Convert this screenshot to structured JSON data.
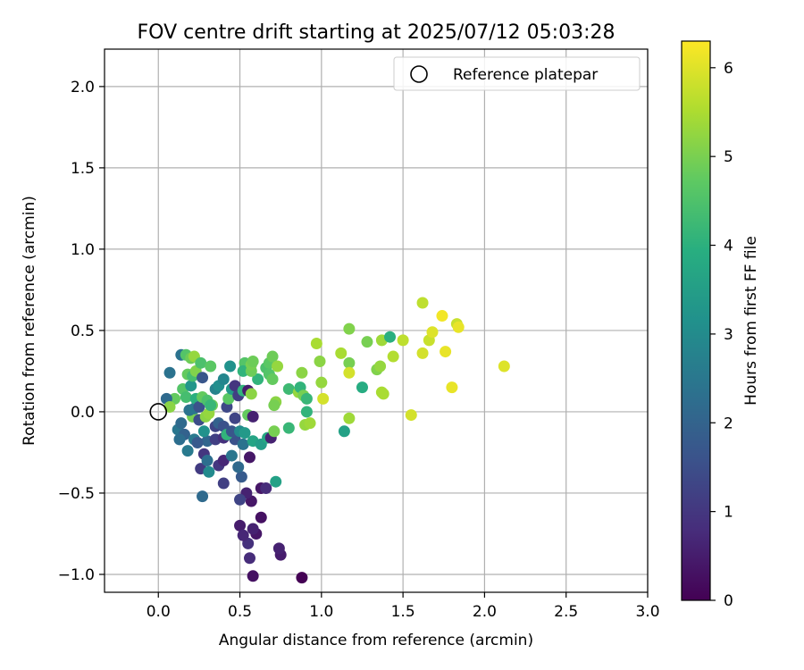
{
  "chart_data": {
    "type": "scatter",
    "title": "FOV centre drift starting at 2025/07/12 05:03:28",
    "xlabel": "Angular distance from reference (arcmin)",
    "ylabel": "Rotation from reference (arcmin)",
    "xlim": [
      -0.33,
      3.0
    ],
    "ylim": [
      -1.11,
      2.23
    ],
    "xticks": [
      "0.0",
      "0.5",
      "1.0",
      "1.5",
      "2.0",
      "2.5",
      "3.0"
    ],
    "yticks": [
      "−1.0",
      "−0.5",
      "0.0",
      "0.5",
      "1.0",
      "1.5",
      "2.0"
    ],
    "grid": true,
    "legend": {
      "label": "Reference platepar",
      "marker": "hollow-circle",
      "location": "top-right"
    },
    "reference_point": {
      "x": 0.0,
      "y": 0.0
    },
    "colorbar": {
      "label": "Hours from first FF file",
      "colormap": "viridis",
      "min": 0,
      "max": 6.3,
      "ticks": [
        "0",
        "1",
        "2",
        "3",
        "4",
        "5",
        "6"
      ]
    },
    "points": [
      {
        "x": 0.88,
        "y": -1.02,
        "c": 0.0
      },
      {
        "x": 0.58,
        "y": -1.01,
        "c": 0.3
      },
      {
        "x": 0.75,
        "y": -0.88,
        "c": 0.5
      },
      {
        "x": 0.74,
        "y": -0.84,
        "c": 0.6
      },
      {
        "x": 0.56,
        "y": -0.9,
        "c": 0.8
      },
      {
        "x": 0.55,
        "y": -0.81,
        "c": 0.9
      },
      {
        "x": 0.6,
        "y": -0.75,
        "c": 0.4
      },
      {
        "x": 0.58,
        "y": -0.72,
        "c": 0.6
      },
      {
        "x": 0.5,
        "y": -0.7,
        "c": 0.5
      },
      {
        "x": 0.52,
        "y": -0.76,
        "c": 0.7
      },
      {
        "x": 0.63,
        "y": -0.65,
        "c": 0.3
      },
      {
        "x": 0.57,
        "y": -0.55,
        "c": 0.4
      },
      {
        "x": 0.54,
        "y": -0.5,
        "c": 0.6
      },
      {
        "x": 0.63,
        "y": -0.47,
        "c": 0.4
      },
      {
        "x": 0.66,
        "y": -0.47,
        "c": 0.8
      },
      {
        "x": 0.5,
        "y": -0.54,
        "c": 1.3
      },
      {
        "x": 0.4,
        "y": -0.44,
        "c": 1.2
      },
      {
        "x": 0.27,
        "y": -0.52,
        "c": 2.2
      },
      {
        "x": 0.26,
        "y": -0.35,
        "c": 1.1
      },
      {
        "x": 0.37,
        "y": -0.33,
        "c": 1.0
      },
      {
        "x": 0.4,
        "y": -0.3,
        "c": 0.7
      },
      {
        "x": 0.31,
        "y": -0.37,
        "c": 3.0
      },
      {
        "x": 0.51,
        "y": -0.4,
        "c": 1.8
      },
      {
        "x": 0.49,
        "y": -0.34,
        "c": 2.2
      },
      {
        "x": 0.56,
        "y": -0.28,
        "c": 0.4
      },
      {
        "x": 0.45,
        "y": -0.27,
        "c": 2.5
      },
      {
        "x": 0.28,
        "y": -0.26,
        "c": 1.0
      },
      {
        "x": 0.3,
        "y": -0.3,
        "c": 2.3
      },
      {
        "x": 0.18,
        "y": -0.24,
        "c": 2.6
      },
      {
        "x": 0.3,
        "y": -0.18,
        "c": 2.1
      },
      {
        "x": 0.35,
        "y": -0.17,
        "c": 1.2
      },
      {
        "x": 0.4,
        "y": -0.16,
        "c": 0.9
      },
      {
        "x": 0.47,
        "y": -0.17,
        "c": 1.6
      },
      {
        "x": 0.52,
        "y": -0.2,
        "c": 2.4
      },
      {
        "x": 0.58,
        "y": -0.18,
        "c": 3.7
      },
      {
        "x": 0.63,
        "y": -0.2,
        "c": 3.5
      },
      {
        "x": 0.67,
        "y": -0.16,
        "c": 3.8
      },
      {
        "x": 0.69,
        "y": -0.16,
        "c": 0.6
      },
      {
        "x": 0.72,
        "y": -0.43,
        "c": 3.6
      },
      {
        "x": 0.71,
        "y": -0.12,
        "c": 5.0
      },
      {
        "x": 0.8,
        "y": -0.1,
        "c": 4.2
      },
      {
        "x": 0.9,
        "y": -0.08,
        "c": 5.3
      },
      {
        "x": 0.93,
        "y": -0.07,
        "c": 5.4
      },
      {
        "x": 1.14,
        "y": -0.12,
        "c": 3.6
      },
      {
        "x": 1.17,
        "y": -0.04,
        "c": 5.4
      },
      {
        "x": 0.12,
        "y": -0.11,
        "c": 2.5
      },
      {
        "x": 0.14,
        "y": -0.07,
        "c": 2.2
      },
      {
        "x": 0.16,
        "y": -0.14,
        "c": 2.0
      },
      {
        "x": 0.13,
        "y": -0.17,
        "c": 2.3
      },
      {
        "x": 0.22,
        "y": -0.17,
        "c": 2.6
      },
      {
        "x": 0.24,
        "y": -0.19,
        "c": 1.8
      },
      {
        "x": 0.21,
        "y": -0.03,
        "c": 5.0
      },
      {
        "x": 0.19,
        "y": 0.01,
        "c": 2.4
      },
      {
        "x": 0.22,
        "y": 0.02,
        "c": 2.5
      },
      {
        "x": 0.25,
        "y": -0.05,
        "c": 1.5
      },
      {
        "x": 0.28,
        "y": -0.12,
        "c": 3.2
      },
      {
        "x": 0.29,
        "y": -0.03,
        "c": 5.2
      },
      {
        "x": 0.31,
        "y": -0.01,
        "c": 5.3
      },
      {
        "x": 0.33,
        "y": 0.04,
        "c": 4.9
      },
      {
        "x": 0.35,
        "y": -0.09,
        "c": 1.3
      },
      {
        "x": 0.37,
        "y": -0.07,
        "c": 2.0
      },
      {
        "x": 0.4,
        "y": -0.09,
        "c": 1.6
      },
      {
        "x": 0.42,
        "y": -0.14,
        "c": 4.1
      },
      {
        "x": 0.45,
        "y": -0.12,
        "c": 1.7
      },
      {
        "x": 0.47,
        "y": -0.04,
        "c": 1.3
      },
      {
        "x": 0.5,
        "y": -0.12,
        "c": 3.0
      },
      {
        "x": 0.53,
        "y": -0.13,
        "c": 3.4
      },
      {
        "x": 0.55,
        "y": -0.02,
        "c": 4.8
      },
      {
        "x": 0.58,
        "y": -0.03,
        "c": 0.6
      },
      {
        "x": 0.1,
        "y": 0.08,
        "c": 4.8
      },
      {
        "x": 0.05,
        "y": 0.08,
        "c": 2.2
      },
      {
        "x": 0.07,
        "y": 0.03,
        "c": 5.2
      },
      {
        "x": 0.15,
        "y": 0.14,
        "c": 4.6
      },
      {
        "x": 0.17,
        "y": 0.09,
        "c": 4.4
      },
      {
        "x": 0.2,
        "y": 0.16,
        "c": 3.3
      },
      {
        "x": 0.23,
        "y": 0.08,
        "c": 4.0
      },
      {
        "x": 0.25,
        "y": 0.03,
        "c": 1.6
      },
      {
        "x": 0.27,
        "y": 0.09,
        "c": 4.8
      },
      {
        "x": 0.3,
        "y": 0.07,
        "c": 4.5
      },
      {
        "x": 0.32,
        "y": 0.04,
        "c": 4.2
      },
      {
        "x": 0.35,
        "y": 0.14,
        "c": 2.8
      },
      {
        "x": 0.37,
        "y": 0.16,
        "c": 3.1
      },
      {
        "x": 0.4,
        "y": 0.2,
        "c": 2.9
      },
      {
        "x": 0.42,
        "y": 0.03,
        "c": 1.4
      },
      {
        "x": 0.43,
        "y": 0.08,
        "c": 4.7
      },
      {
        "x": 0.45,
        "y": 0.14,
        "c": 3.4
      },
      {
        "x": 0.47,
        "y": 0.16,
        "c": 1.0
      },
      {
        "x": 0.49,
        "y": 0.1,
        "c": 1.2
      },
      {
        "x": 0.52,
        "y": 0.13,
        "c": 4.1
      },
      {
        "x": 0.55,
        "y": 0.13,
        "c": 0.5
      },
      {
        "x": 0.57,
        "y": 0.11,
        "c": 5.2
      },
      {
        "x": 0.61,
        "y": 0.2,
        "c": 4.1
      },
      {
        "x": 0.14,
        "y": 0.35,
        "c": 2.4
      },
      {
        "x": 0.17,
        "y": 0.35,
        "c": 4.6
      },
      {
        "x": 0.2,
        "y": 0.33,
        "c": 4.9
      },
      {
        "x": 0.22,
        "y": 0.34,
        "c": 5.3
      },
      {
        "x": 0.18,
        "y": 0.23,
        "c": 4.8
      },
      {
        "x": 0.21,
        "y": 0.22,
        "c": 4.4
      },
      {
        "x": 0.23,
        "y": 0.25,
        "c": 5.1
      },
      {
        "x": 0.27,
        "y": 0.21,
        "c": 1.7
      },
      {
        "x": 0.26,
        "y": 0.3,
        "c": 4.5
      },
      {
        "x": 0.32,
        "y": 0.28,
        "c": 4.7
      },
      {
        "x": 0.07,
        "y": 0.24,
        "c": 2.4
      },
      {
        "x": 0.44,
        "y": 0.28,
        "c": 3.2
      },
      {
        "x": 0.53,
        "y": 0.3,
        "c": 4.6
      },
      {
        "x": 0.52,
        "y": 0.25,
        "c": 4.1
      },
      {
        "x": 0.57,
        "y": 0.25,
        "c": 4.9
      },
      {
        "x": 0.57,
        "y": 0.29,
        "c": 5.0
      },
      {
        "x": 0.58,
        "y": 0.31,
        "c": 4.9
      },
      {
        "x": 0.66,
        "y": 0.27,
        "c": 4.5
      },
      {
        "x": 0.68,
        "y": 0.3,
        "c": 4.7
      },
      {
        "x": 0.7,
        "y": 0.34,
        "c": 4.9
      },
      {
        "x": 0.68,
        "y": 0.23,
        "c": 4.6
      },
      {
        "x": 0.7,
        "y": 0.2,
        "c": 4.8
      },
      {
        "x": 0.73,
        "y": 0.28,
        "c": 5.3
      },
      {
        "x": 0.72,
        "y": 0.06,
        "c": 5.2
      },
      {
        "x": 0.71,
        "y": 0.04,
        "c": 5.0
      },
      {
        "x": 0.8,
        "y": 0.14,
        "c": 4.3
      },
      {
        "x": 0.86,
        "y": 0.12,
        "c": 5.3
      },
      {
        "x": 0.87,
        "y": 0.15,
        "c": 4.1
      },
      {
        "x": 0.88,
        "y": 0.24,
        "c": 5.2
      },
      {
        "x": 0.89,
        "y": 0.1,
        "c": 5.0
      },
      {
        "x": 0.91,
        "y": 0.08,
        "c": 4.2
      },
      {
        "x": 0.91,
        "y": 0.0,
        "c": 4.1
      },
      {
        "x": 0.97,
        "y": 0.42,
        "c": 5.5
      },
      {
        "x": 0.99,
        "y": 0.31,
        "c": 5.2
      },
      {
        "x": 1.0,
        "y": 0.18,
        "c": 5.3
      },
      {
        "x": 1.01,
        "y": 0.08,
        "c": 5.9
      },
      {
        "x": 1.12,
        "y": 0.36,
        "c": 5.5
      },
      {
        "x": 1.17,
        "y": 0.3,
        "c": 5.0
      },
      {
        "x": 1.17,
        "y": 0.24,
        "c": 5.9
      },
      {
        "x": 1.17,
        "y": 0.51,
        "c": 5.1
      },
      {
        "x": 1.25,
        "y": 0.15,
        "c": 3.9
      },
      {
        "x": 1.28,
        "y": 0.43,
        "c": 5.0
      },
      {
        "x": 1.34,
        "y": 0.26,
        "c": 5.1
      },
      {
        "x": 1.36,
        "y": 0.28,
        "c": 5.3
      },
      {
        "x": 1.37,
        "y": 0.12,
        "c": 5.5
      },
      {
        "x": 1.37,
        "y": 0.44,
        "c": 5.4
      },
      {
        "x": 1.38,
        "y": 0.11,
        "c": 5.5
      },
      {
        "x": 1.42,
        "y": 0.46,
        "c": 4.0
      },
      {
        "x": 1.44,
        "y": 0.34,
        "c": 5.6
      },
      {
        "x": 1.5,
        "y": 0.44,
        "c": 5.7
      },
      {
        "x": 1.55,
        "y": -0.02,
        "c": 5.9
      },
      {
        "x": 1.62,
        "y": 0.36,
        "c": 5.9
      },
      {
        "x": 1.62,
        "y": 0.67,
        "c": 5.7
      },
      {
        "x": 1.66,
        "y": 0.44,
        "c": 5.8
      },
      {
        "x": 1.68,
        "y": 0.49,
        "c": 6.0
      },
      {
        "x": 1.74,
        "y": 0.59,
        "c": 6.2
      },
      {
        "x": 1.76,
        "y": 0.37,
        "c": 6.1
      },
      {
        "x": 1.8,
        "y": 0.15,
        "c": 6.1
      },
      {
        "x": 1.83,
        "y": 0.54,
        "c": 5.8
      },
      {
        "x": 1.84,
        "y": 0.52,
        "c": 6.1
      },
      {
        "x": 2.12,
        "y": 0.28,
        "c": 6.0
      }
    ]
  }
}
